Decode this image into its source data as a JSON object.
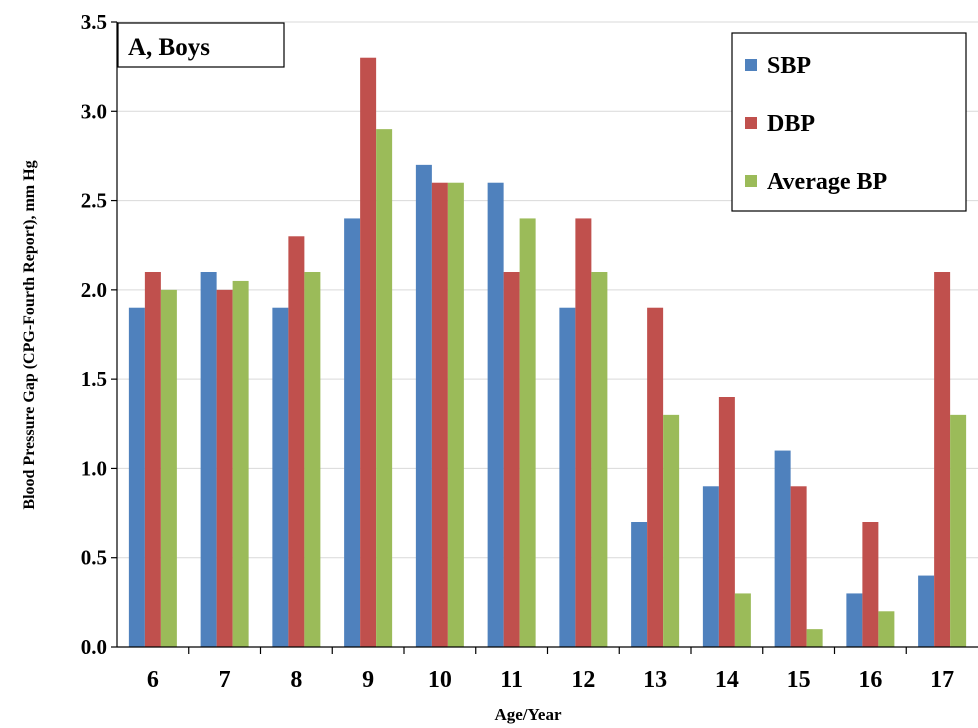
{
  "chart_data": {
    "type": "bar",
    "title": "A, Boys",
    "xlabel": "Age/Year",
    "ylabel": "Blood Pressure Gap (CPG-Fourth Report), mm Hg",
    "categories": [
      "6",
      "7",
      "8",
      "9",
      "10",
      "11",
      "12",
      "13",
      "14",
      "15",
      "16",
      "17"
    ],
    "series": [
      {
        "name": "SBP",
        "color": "#4f81bd",
        "values": [
          1.9,
          2.1,
          1.9,
          2.4,
          2.7,
          2.6,
          1.9,
          0.7,
          0.9,
          1.1,
          0.3,
          0.4
        ]
      },
      {
        "name": "DBP",
        "color": "#c0504d",
        "values": [
          2.1,
          2.0,
          2.3,
          3.3,
          2.6,
          2.1,
          2.4,
          1.9,
          1.4,
          0.9,
          0.7,
          2.1
        ]
      },
      {
        "name": "Average BP",
        "color": "#9bbb59",
        "values": [
          2.0,
          2.05,
          2.1,
          2.9,
          2.6,
          2.4,
          2.1,
          1.3,
          0.3,
          0.1,
          0.2,
          1.3
        ]
      }
    ],
    "ylim": [
      0,
      3.5
    ],
    "yticks": [
      "0.0",
      "0.5",
      "1.0",
      "1.5",
      "2.0",
      "2.5",
      "3.0",
      "3.5"
    ],
    "grid": true,
    "legend_position": "top-right"
  }
}
